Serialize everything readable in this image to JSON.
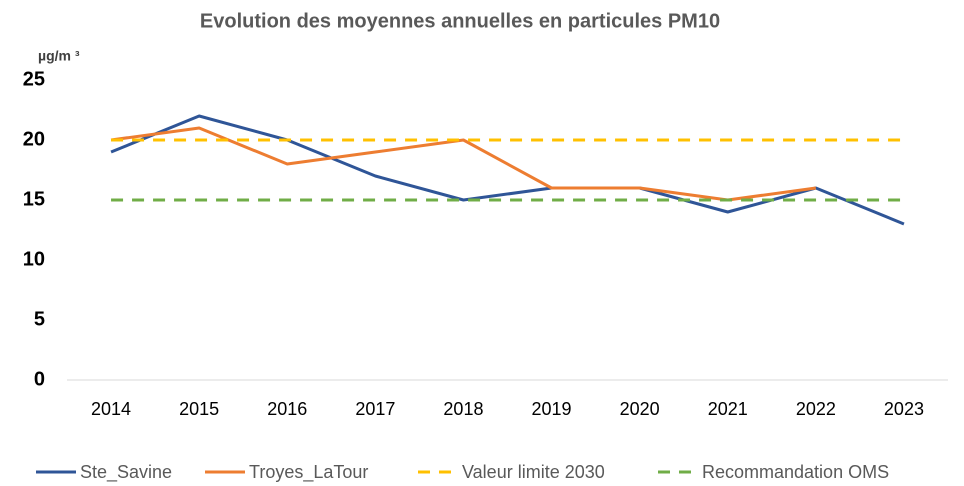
{
  "chart_data": {
    "type": "line",
    "title": "Evolution des moyennes annuelles en particules PM10",
    "y_label": "µg/m ³",
    "categories": [
      "2014",
      "2015",
      "2016",
      "2017",
      "2018",
      "2019",
      "2020",
      "2021",
      "2022",
      "2023"
    ],
    "series": [
      {
        "name": "Ste_Savine",
        "color": "#2f5597",
        "dash": false,
        "values": [
          19,
          22,
          20,
          17,
          15,
          16,
          16,
          14,
          16,
          13
        ]
      },
      {
        "name": "Troyes_LaTour",
        "color": "#ed7d31",
        "dash": false,
        "values": [
          20,
          21,
          18,
          19,
          20,
          16,
          16,
          15,
          16,
          null
        ]
      },
      {
        "name": "Valeur limite 2030",
        "color": "#ffc000",
        "dash": true,
        "values": [
          20,
          20,
          20,
          20,
          20,
          20,
          20,
          20,
          20,
          20
        ]
      },
      {
        "name": "Recommandation OMS",
        "color": "#70ad47",
        "dash": true,
        "values": [
          15,
          15,
          15,
          15,
          15,
          15,
          15,
          15,
          15,
          15
        ]
      }
    ],
    "ylim": [
      0,
      25
    ],
    "yticks": [
      0,
      5,
      10,
      15,
      20,
      25
    ],
    "grid": false,
    "legend": "bottom"
  }
}
